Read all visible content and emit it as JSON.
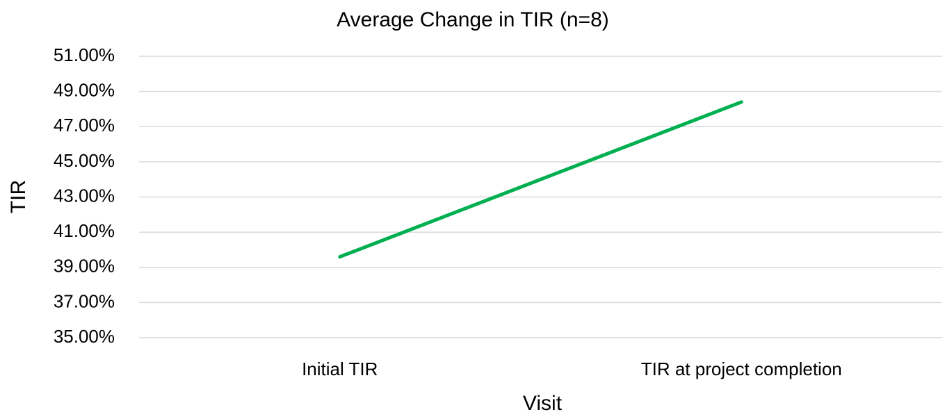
{
  "chart_data": {
    "type": "line",
    "title": "Average Change in TIR (n=8)",
    "x_label": "Visit",
    "y_label": "TIR",
    "categories": [
      "Initial TIR",
      "TIR at project completion"
    ],
    "series": [
      {
        "name": "TIR",
        "color": "#00b050",
        "values": [
          39.6,
          48.4
        ]
      }
    ],
    "ylim": [
      35,
      51
    ],
    "yticks": [
      {
        "value": 35,
        "label": "35.00%"
      },
      {
        "value": 37,
        "label": "37.00%"
      },
      {
        "value": 39,
        "label": "39.00%"
      },
      {
        "value": 41,
        "label": "41.00%"
      },
      {
        "value": 43,
        "label": "43.00%"
      },
      {
        "value": 45,
        "label": "45.00%"
      },
      {
        "value": 47,
        "label": "47.00%"
      },
      {
        "value": 49,
        "label": "49.00%"
      },
      {
        "value": 51,
        "label": "51.00%"
      }
    ],
    "grid": true,
    "legend": false
  }
}
